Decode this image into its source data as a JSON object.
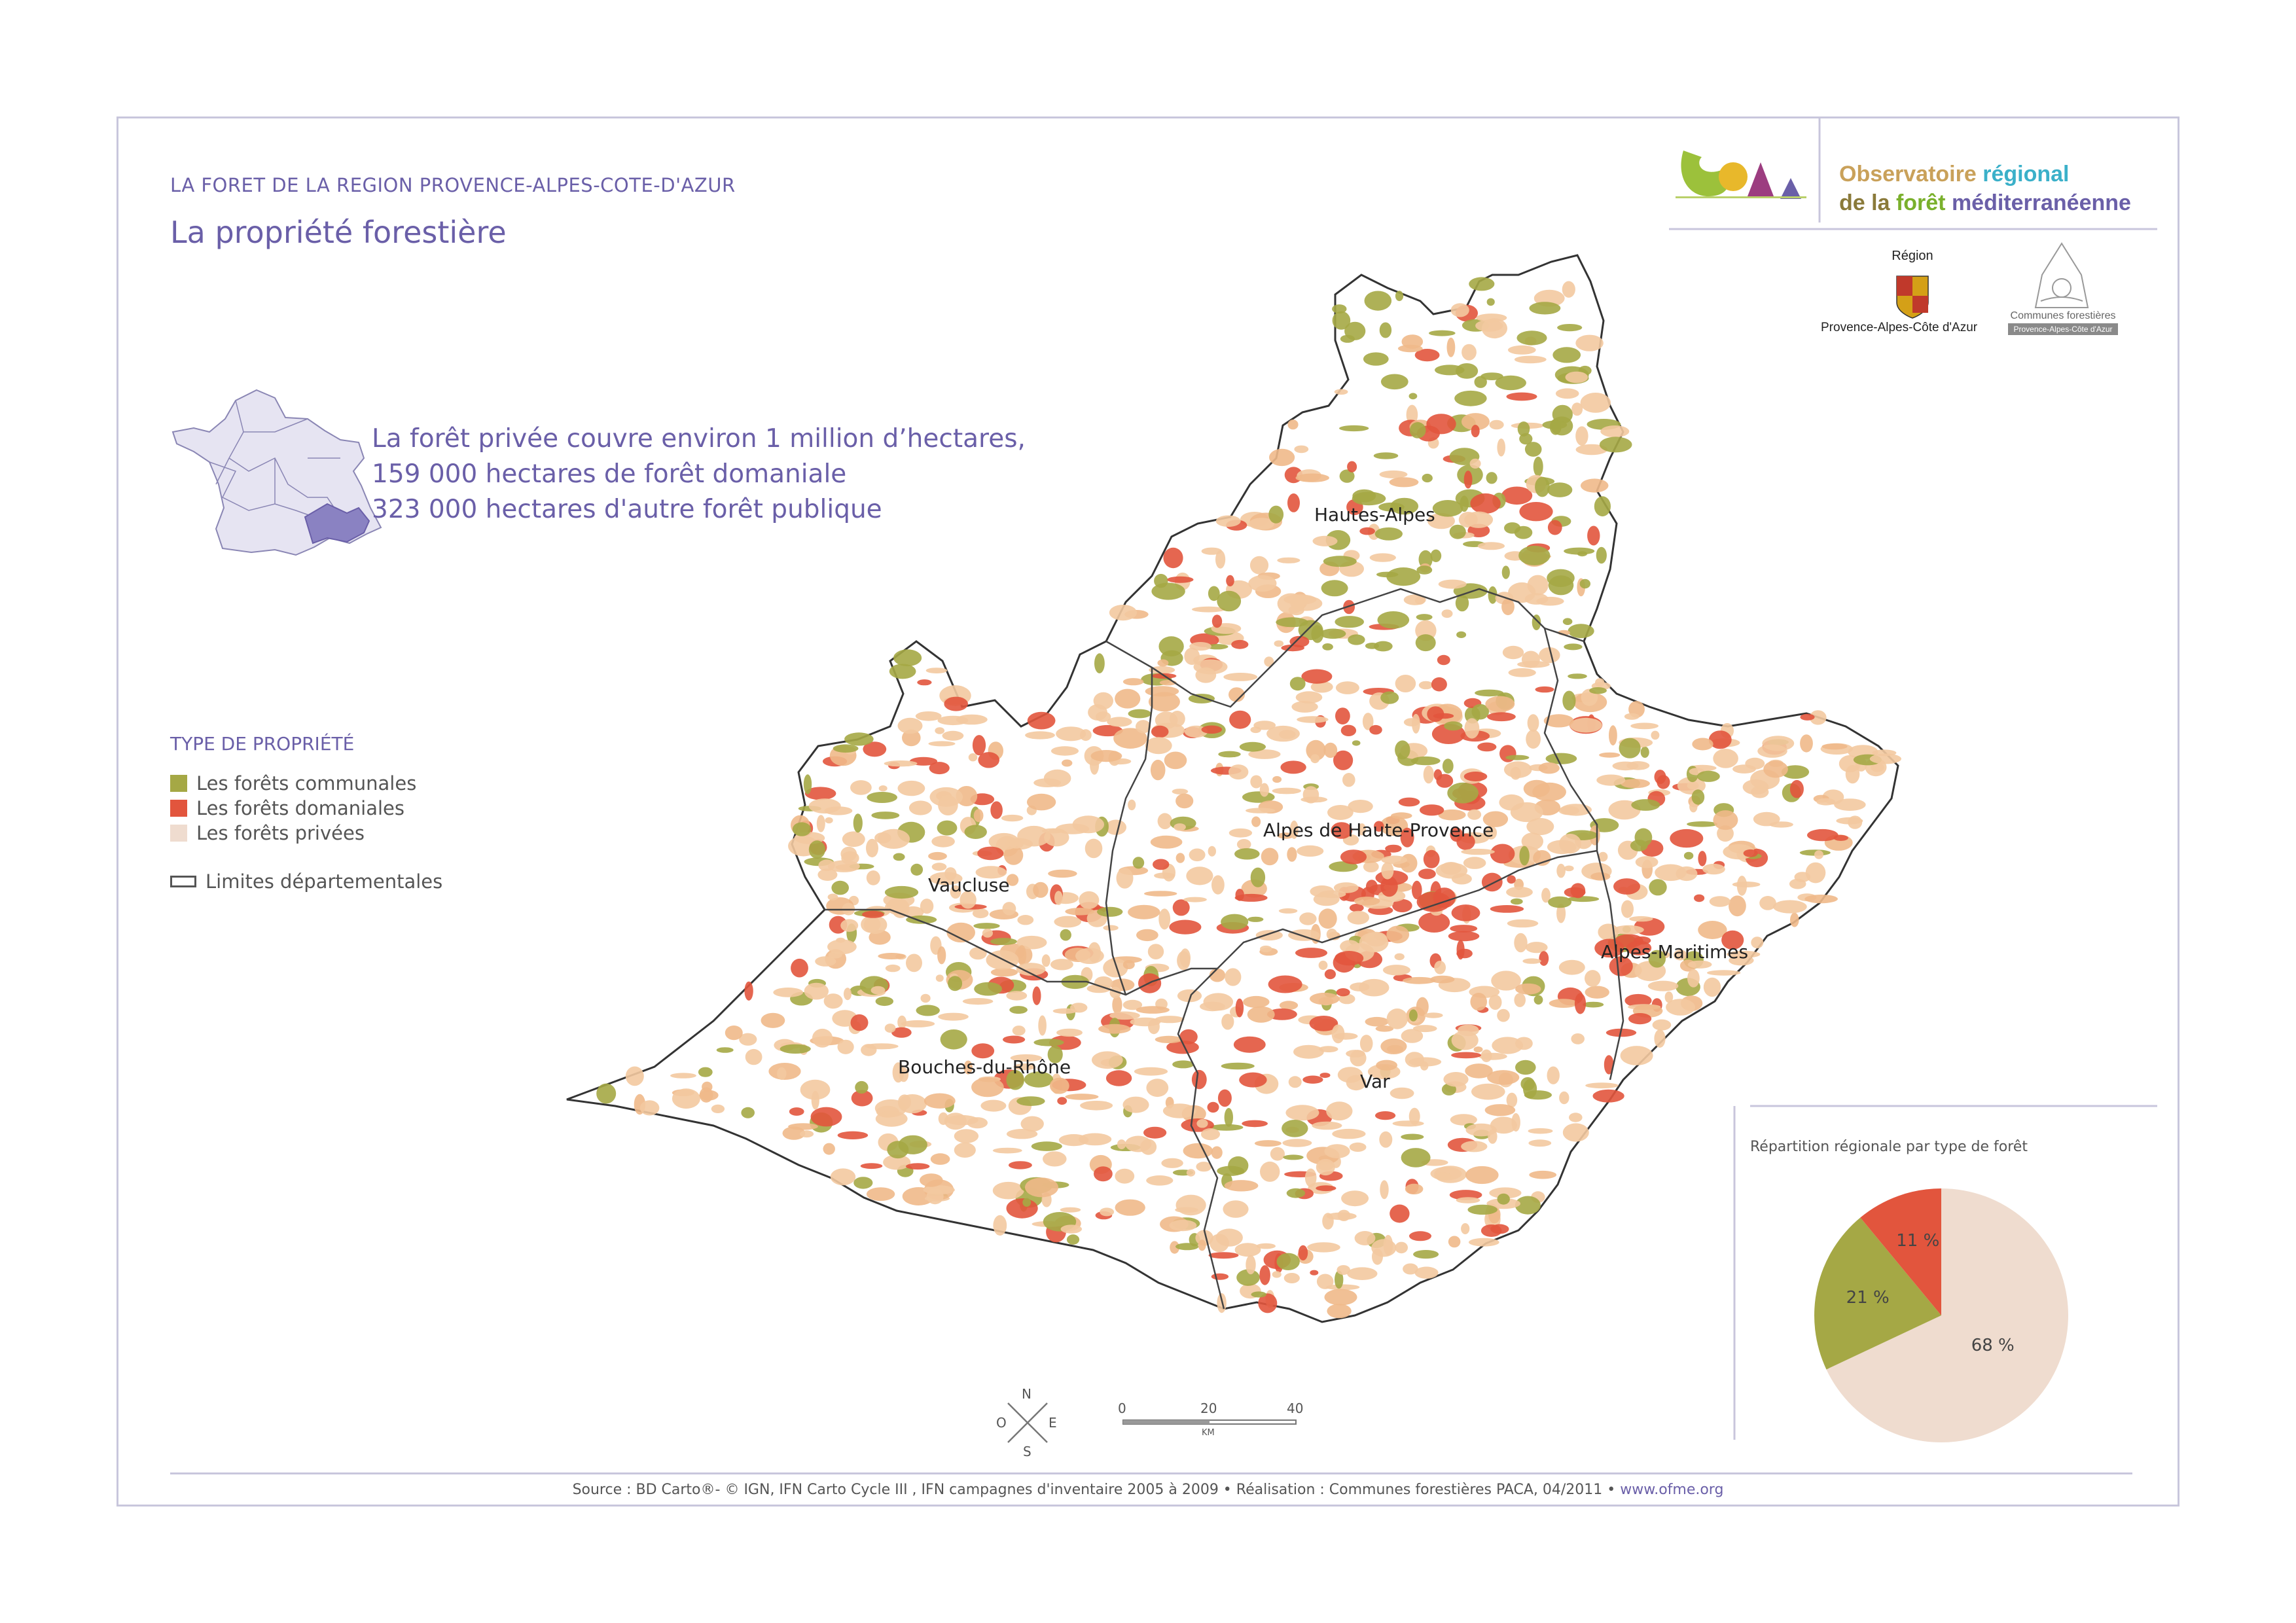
{
  "header": {
    "kicker": "LA FORET DE LA REGION PROVENCE-ALPES-COTE-D'AZUR",
    "title": "La propriété forestière"
  },
  "stats": [
    "La forêt privée couvre environ 1 million d’hectares,",
    "159 000 hectares de forêt domaniale",
    "323 000 hectares d'autre forêt publique"
  ],
  "logos": {
    "observatoire_line1a": "Observatoire ",
    "observatoire_line1b": "régional",
    "observatoire_line2a": "de la ",
    "observatoire_line2b": "forêt",
    "observatoire_line2c": " méditerranéenne",
    "region_label": "Région",
    "region_name": "Provence-Alpes-Côte d'Azur",
    "communes_label": "Communes forestières",
    "communes_sub": "Provence-Alpes-Côte d'Azur"
  },
  "legend": {
    "title": "TYPE DE PROPRIÉTÉ",
    "items": [
      {
        "label": "Les forêts communales",
        "color": "#a5a845"
      },
      {
        "label": "Les forêts domaniales",
        "color": "#e2553d"
      },
      {
        "label": "Les forêts privées",
        "color": "#efdccf"
      }
    ],
    "boundary_label": "Limites départementales"
  },
  "departments": {
    "hautes_alpes": "Hautes-Alpes",
    "alpes_hp": "Alpes de Haute-Provence",
    "vaucluse": "Vaucluse",
    "alpes_maritimes": "Alpes-Maritimes",
    "bouches_du_rhone": "Bouches-du-Rhône",
    "var": "Var"
  },
  "compass": {
    "n": "N",
    "s": "S",
    "e": "E",
    "o": "O"
  },
  "scale": {
    "labels": [
      "0",
      "20",
      "40"
    ],
    "unit": "KM"
  },
  "pie": {
    "title": "Répartition régionale par type de forêt",
    "slices": [
      {
        "label": "68 %",
        "value": 68,
        "color": "#efdccf"
      },
      {
        "label": "21 %",
        "value": 21,
        "color": "#a5a845"
      },
      {
        "label": "11 %",
        "value": 11,
        "color": "#e2553d"
      }
    ]
  },
  "footer": {
    "source": "Source : BD Carto®- © IGN, IFN Carto Cycle III , IFN campagnes d'inventaire 2005 à 2009 • Réalisation : Communes forestières PACA, 04/2011 • ",
    "url": "www.ofme.org"
  }
}
